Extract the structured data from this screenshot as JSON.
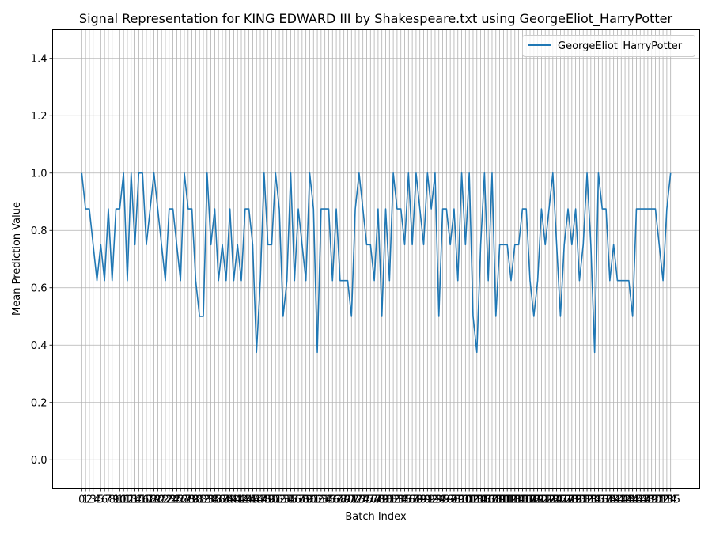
{
  "chart_data": {
    "type": "line",
    "title": "Signal Representation for KING EDWARD III by Shakespeare.txt using GeorgeEliot_HarryPotter",
    "xlabel": "Batch Index",
    "ylabel": "Mean Prediction Value",
    "ylim": [
      -0.1,
      1.5
    ],
    "yticks": [
      0.0,
      0.2,
      0.4,
      0.6,
      0.8,
      1.0,
      1.2,
      1.4
    ],
    "grid": true,
    "legend_position": "top-right",
    "line_color": "#1f77b4",
    "grid_color": "#b0b0b0",
    "series": [
      {
        "name": "GeorgeEliot_HarryPotter",
        "values": [
          1.0,
          0.875,
          0.875,
          0.75,
          0.625,
          0.75,
          0.625,
          0.875,
          0.625,
          0.875,
          0.875,
          1.0,
          0.625,
          1.0,
          0.75,
          1.0,
          1.0,
          0.75,
          0.875,
          1.0,
          0.875,
          0.75,
          0.625,
          0.875,
          0.875,
          0.75,
          0.625,
          1.0,
          0.875,
          0.875,
          0.625,
          0.5,
          0.5,
          1.0,
          0.75,
          0.875,
          0.625,
          0.75,
          0.625,
          0.875,
          0.625,
          0.75,
          0.625,
          0.875,
          0.875,
          0.75,
          0.375,
          0.625,
          1.0,
          0.75,
          0.75,
          1.0,
          0.875,
          0.5,
          0.625,
          1.0,
          0.625,
          0.875,
          0.75,
          0.625,
          1.0,
          0.875,
          0.375,
          0.875,
          0.875,
          0.875,
          0.625,
          0.875,
          0.625,
          0.625,
          0.625,
          0.5,
          0.875,
          1.0,
          0.875,
          0.75,
          0.75,
          0.625,
          0.875,
          0.5,
          0.875,
          0.625,
          1.0,
          0.875,
          0.875,
          0.75,
          1.0,
          0.75,
          1.0,
          0.875,
          0.75,
          1.0,
          0.875,
          1.0,
          0.5,
          0.875,
          0.875,
          0.75,
          0.875,
          0.625,
          1.0,
          0.75,
          1.0,
          0.5,
          0.375,
          0.75,
          1.0,
          0.625,
          1.0,
          0.5,
          0.75,
          0.75,
          0.75,
          0.625,
          0.75,
          0.75,
          0.875,
          0.875,
          0.625,
          0.5,
          0.625,
          0.875,
          0.75,
          0.875,
          1.0,
          0.75,
          0.5,
          0.75,
          0.875,
          0.75,
          0.875,
          0.625,
          0.75,
          1.0,
          0.75,
          0.375,
          1.0,
          0.875,
          0.875,
          0.625,
          0.75,
          0.625,
          0.625,
          0.625,
          0.625,
          0.5,
          0.875,
          0.875,
          0.875,
          0.875,
          0.875,
          0.875,
          0.75,
          0.625,
          0.875,
          1.0
        ]
      }
    ]
  }
}
